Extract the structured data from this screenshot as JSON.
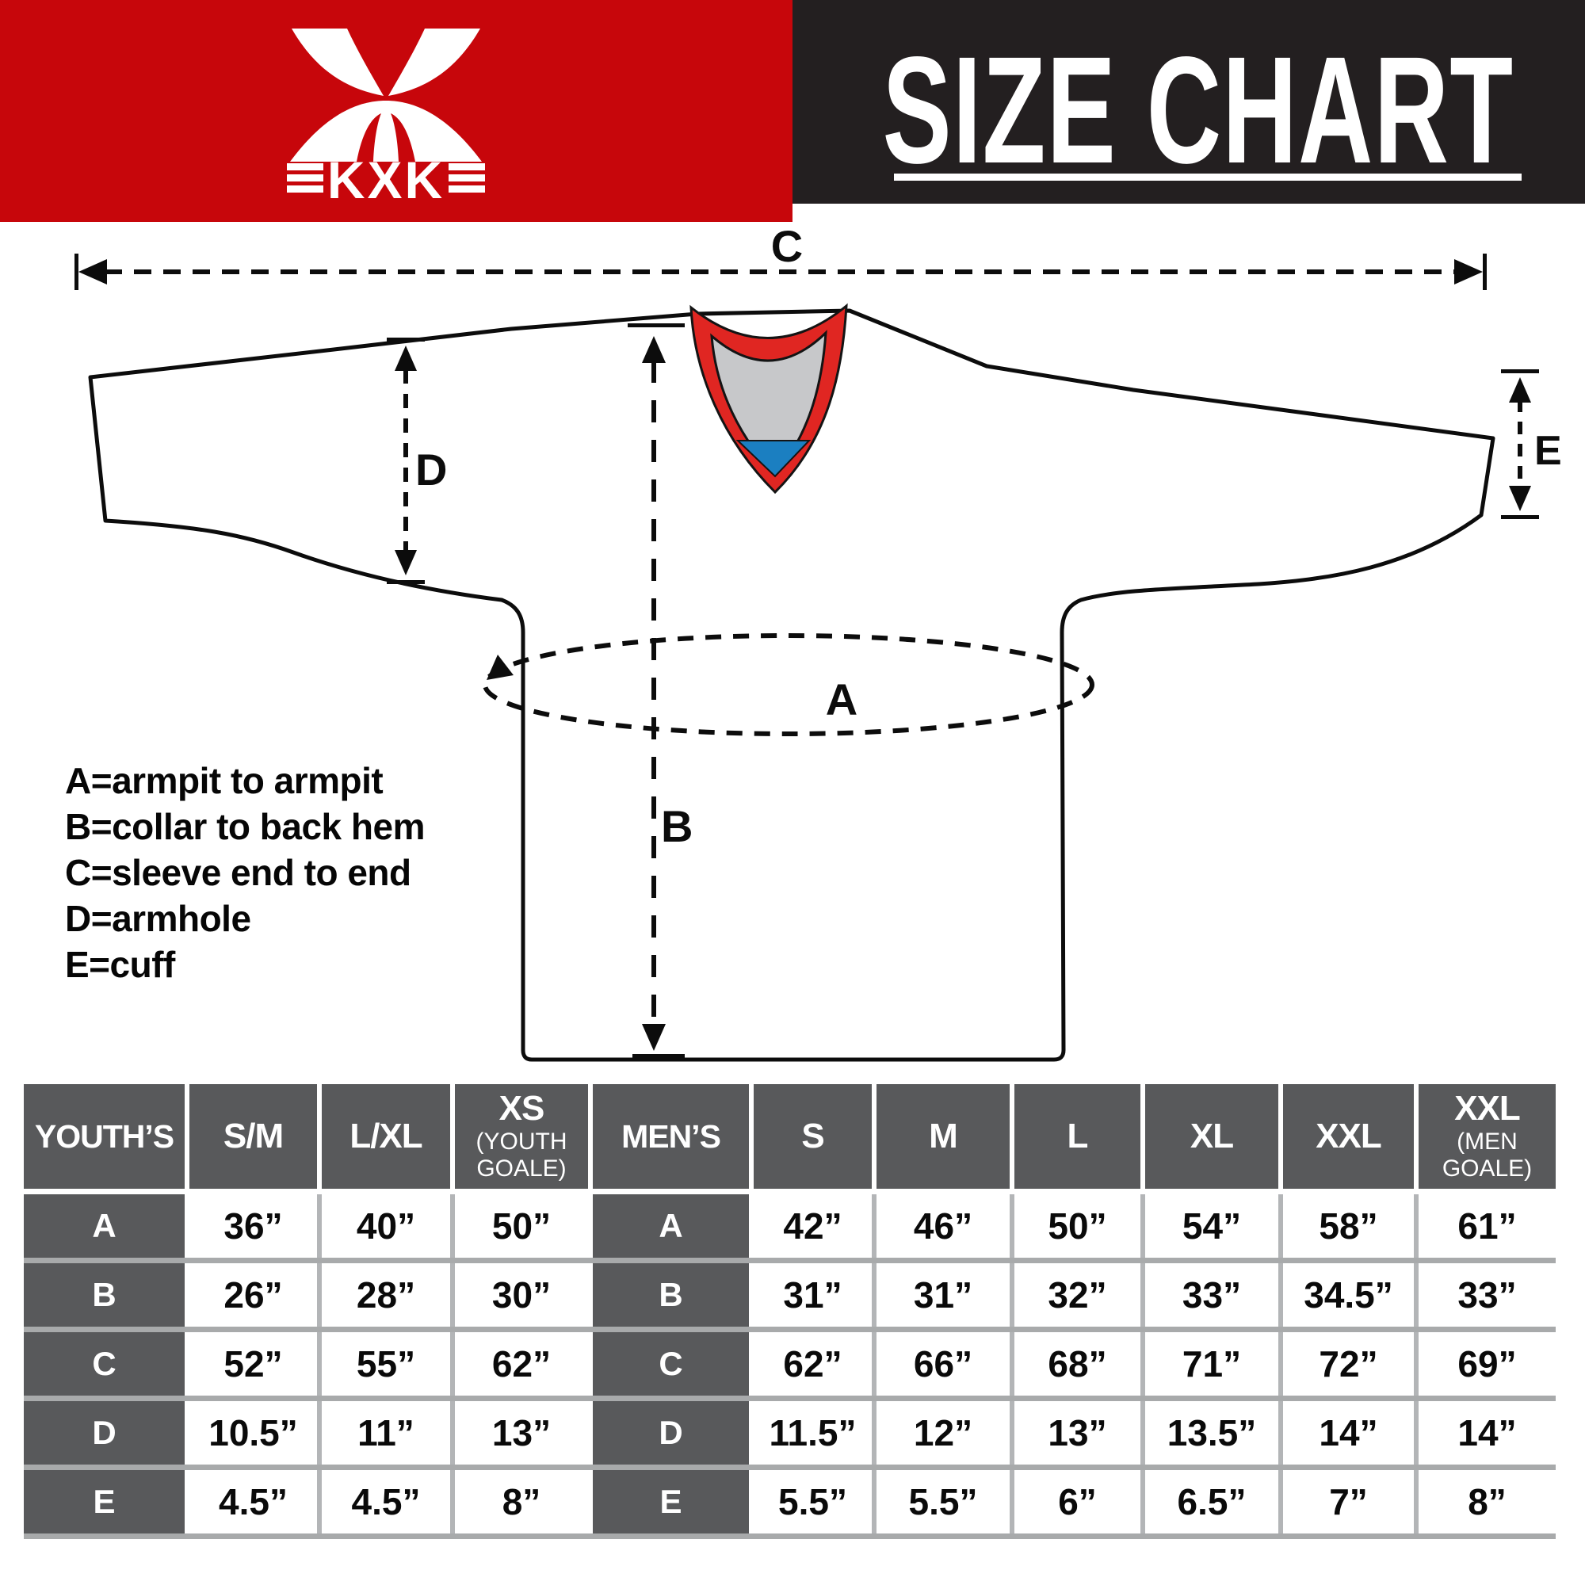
{
  "colors": {
    "brand_red": "#c7060b",
    "header_black": "#231f20",
    "table_dark": "#58595b",
    "row_separator": "#a8aaab",
    "cell_separator": "#b3b5b7",
    "collar_red": "#e02622",
    "collar_gray": "#c7c8ca",
    "collar_blue": "#1b7fc1",
    "line_black": "#0c0c0c"
  },
  "header": {
    "brand": {
      "logo_text": "KXK"
    },
    "title": {
      "text": "SIZE CHART"
    }
  },
  "diagram": {
    "labels": {
      "A": "A",
      "B": "B",
      "C": "C",
      "D": "D",
      "E": "E"
    },
    "legend": [
      "A=armpit to armpit",
      "B=collar to back hem",
      "C=sleeve end to end",
      "D=armhole",
      "E=cuff"
    ]
  },
  "size_table": {
    "row_labels": [
      "A",
      "B",
      "C",
      "D",
      "E"
    ],
    "youth": {
      "group_label": "YOUTH’S",
      "columns": [
        {
          "label": "S/M"
        },
        {
          "label": "L/XL"
        },
        {
          "label": "XS",
          "sub": "(YOUTH GOALE)"
        }
      ],
      "rows": [
        [
          "36”",
          "40”",
          "50”"
        ],
        [
          "26”",
          "28”",
          "30”"
        ],
        [
          "52”",
          "55”",
          "62”"
        ],
        [
          "10.5”",
          "11”",
          "13”"
        ],
        [
          "4.5”",
          "4.5”",
          "8”"
        ]
      ]
    },
    "mens": {
      "group_label": "MEN’S",
      "columns": [
        {
          "label": "S"
        },
        {
          "label": "M"
        },
        {
          "label": "L"
        },
        {
          "label": "XL"
        },
        {
          "label": "XXL"
        },
        {
          "label": "XXL",
          "sub": "(MEN GOALE)"
        }
      ],
      "rows": [
        [
          "42”",
          "46”",
          "50”",
          "54”",
          "58”",
          "61”"
        ],
        [
          "31”",
          "31”",
          "32”",
          "33”",
          "34.5”",
          "33”"
        ],
        [
          "62”",
          "66”",
          "68”",
          "71”",
          "72”",
          "69”"
        ],
        [
          "11.5”",
          "12”",
          "13”",
          "13.5”",
          "14”",
          "14”"
        ],
        [
          "5.5”",
          "5.5”",
          "6”",
          "6.5”",
          "7”",
          "8”"
        ]
      ]
    }
  }
}
